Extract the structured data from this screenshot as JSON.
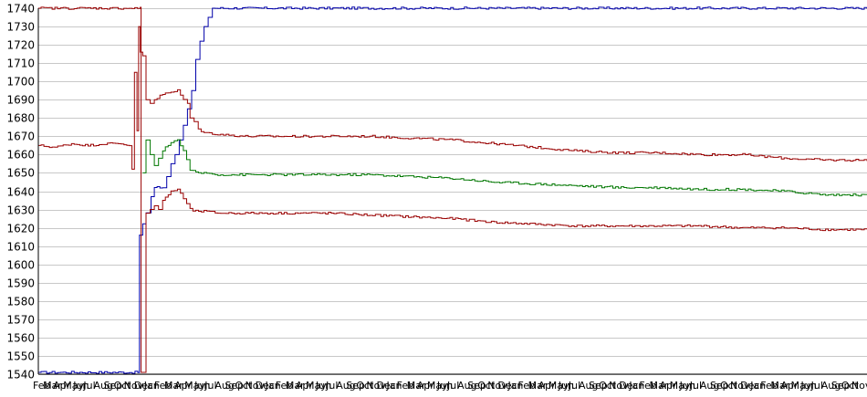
{
  "chart_data": {
    "type": "line",
    "title": "",
    "xlabel": "",
    "ylabel": "",
    "ylim": [
      1540,
      1740
    ],
    "yticks": [
      1540,
      1550,
      1560,
      1570,
      1580,
      1590,
      1600,
      1610,
      1620,
      1630,
      1640,
      1650,
      1660,
      1670,
      1680,
      1690,
      1700,
      1710,
      1720,
      1730,
      1740
    ],
    "ytick_labels": [
      "1540",
      "1550",
      "1560",
      "1570",
      "1580",
      "1590",
      "1600",
      "1610",
      "1620",
      "1630",
      "1640",
      "1650",
      "1660",
      "1670",
      "1680",
      "1690",
      "1700",
      "1710",
      "1720",
      "1730",
      "1740"
    ],
    "grid": true,
    "legend": "none",
    "x_range": [
      0,
      100
    ],
    "xtick_labels": [
      "Feb",
      "Mar",
      "Apr",
      "May",
      "Jun",
      "Jul",
      "Aug",
      "Sep",
      "Oct",
      "Nov",
      "Dec",
      "Jan",
      "Feb",
      "Mar",
      "Apr",
      "May",
      "Jun",
      "Jul",
      "Aug",
      "Sep",
      "Oct",
      "Nov",
      "Dec",
      "Jan",
      "Feb",
      "Mar",
      "Apr",
      "May",
      "Jun",
      "Jul",
      "Aug",
      "Sep",
      "Oct",
      "Nov",
      "Dec",
      "Jan",
      "Feb",
      "Mar",
      "Apr",
      "May",
      "Jun",
      "Jul",
      "Aug",
      "Sep",
      "Oct",
      "Nov",
      "Dec",
      "Jan",
      "Feb",
      "Mar",
      "Apr",
      "May",
      "Jun",
      "Jul",
      "Aug",
      "Sep",
      "Oct",
      "Nov",
      "Dec",
      "Jan",
      "Feb",
      "Mar",
      "Apr",
      "May",
      "Jun",
      "Jul",
      "Aug",
      "Sep",
      "Oct",
      "Nov",
      "Dec",
      "Jan",
      "Feb",
      "Mar",
      "Apr",
      "May",
      "Jun",
      "Jul",
      "Aug",
      "Sep",
      "Oct",
      "Nov"
    ],
    "colors": {
      "background": "#ffffff",
      "grid": "#c8c8c8",
      "axis": "#000000"
    },
    "series": [
      {
        "color": "#0000aa",
        "points": [
          [
            0,
            1541
          ],
          [
            12,
            1541
          ],
          [
            12.2,
            1616
          ],
          [
            13,
            1628
          ],
          [
            13.6,
            1637
          ],
          [
            14,
            1642
          ],
          [
            15,
            1642
          ],
          [
            15.5,
            1648
          ],
          [
            16,
            1655
          ],
          [
            16.5,
            1660
          ],
          [
            17,
            1668
          ],
          [
            17.5,
            1676
          ],
          [
            18,
            1685
          ],
          [
            18.5,
            1695
          ],
          [
            19,
            1712
          ],
          [
            19.5,
            1722
          ],
          [
            20,
            1730
          ],
          [
            20.5,
            1735
          ],
          [
            21,
            1740
          ],
          [
            100,
            1740
          ]
        ]
      },
      {
        "color": "#990000",
        "points": [
          [
            0,
            1665
          ],
          [
            2,
            1664
          ],
          [
            4,
            1666
          ],
          [
            6,
            1665
          ],
          [
            8,
            1666
          ],
          [
            10,
            1666
          ],
          [
            11,
            1665
          ],
          [
            11.3,
            1652
          ],
          [
            11.6,
            1705
          ],
          [
            11.9,
            1673
          ],
          [
            12.1,
            1730
          ],
          [
            12.3,
            1716
          ],
          [
            12.6,
            1714
          ],
          [
            13,
            1690
          ],
          [
            13.5,
            1688
          ],
          [
            14,
            1690
          ],
          [
            15,
            1693
          ],
          [
            16,
            1694
          ],
          [
            16.8,
            1695
          ],
          [
            17.5,
            1690
          ],
          [
            18,
            1688
          ],
          [
            18.3,
            1680
          ],
          [
            18.8,
            1678
          ],
          [
            19.3,
            1674
          ],
          [
            20,
            1672
          ],
          [
            22,
            1671
          ],
          [
            25,
            1670
          ],
          [
            30,
            1670
          ],
          [
            35,
            1670
          ],
          [
            40,
            1670
          ],
          [
            45,
            1669
          ],
          [
            50,
            1668
          ],
          [
            55,
            1666
          ],
          [
            60,
            1664
          ],
          [
            65,
            1662
          ],
          [
            70,
            1661
          ],
          [
            75,
            1661
          ],
          [
            80,
            1660
          ],
          [
            85,
            1660
          ],
          [
            90,
            1658
          ],
          [
            95,
            1657
          ],
          [
            100,
            1657
          ]
        ]
      },
      {
        "color": "#990000",
        "points": [
          [
            0,
            1740
          ],
          [
            12.3,
            1740
          ],
          [
            12.4,
            1541
          ],
          [
            13,
            1628
          ],
          [
            13.5,
            1630
          ],
          [
            14,
            1632
          ],
          [
            14.5,
            1630
          ],
          [
            15,
            1635
          ],
          [
            16,
            1640
          ],
          [
            16.8,
            1641
          ],
          [
            17.5,
            1636
          ],
          [
            18.3,
            1630
          ],
          [
            19,
            1629
          ],
          [
            20,
            1629
          ],
          [
            22,
            1628
          ],
          [
            25,
            1628
          ],
          [
            30,
            1628
          ],
          [
            35,
            1628
          ],
          [
            40,
            1627
          ],
          [
            45,
            1626
          ],
          [
            50,
            1625
          ],
          [
            55,
            1623
          ],
          [
            60,
            1622
          ],
          [
            65,
            1621
          ],
          [
            70,
            1621
          ],
          [
            75,
            1621
          ],
          [
            80,
            1621
          ],
          [
            85,
            1620
          ],
          [
            90,
            1620
          ],
          [
            95,
            1619
          ],
          [
            100,
            1619
          ]
        ]
      },
      {
        "color": "#007700",
        "points": [
          [
            12.6,
            1650
          ],
          [
            13,
            1668
          ],
          [
            13.5,
            1660
          ],
          [
            14,
            1654
          ],
          [
            14.5,
            1658
          ],
          [
            15,
            1662
          ],
          [
            16,
            1667
          ],
          [
            16.8,
            1668
          ],
          [
            17.5,
            1662
          ],
          [
            18.3,
            1652
          ],
          [
            19,
            1650
          ],
          [
            20,
            1650
          ],
          [
            22,
            1649
          ],
          [
            25,
            1649
          ],
          [
            30,
            1649
          ],
          [
            35,
            1649
          ],
          [
            40,
            1649
          ],
          [
            45,
            1648
          ],
          [
            50,
            1647
          ],
          [
            55,
            1645
          ],
          [
            60,
            1644
          ],
          [
            65,
            1643
          ],
          [
            70,
            1642
          ],
          [
            75,
            1642
          ],
          [
            80,
            1641
          ],
          [
            85,
            1641
          ],
          [
            90,
            1640
          ],
          [
            95,
            1638
          ],
          [
            100,
            1638
          ]
        ]
      }
    ]
  }
}
